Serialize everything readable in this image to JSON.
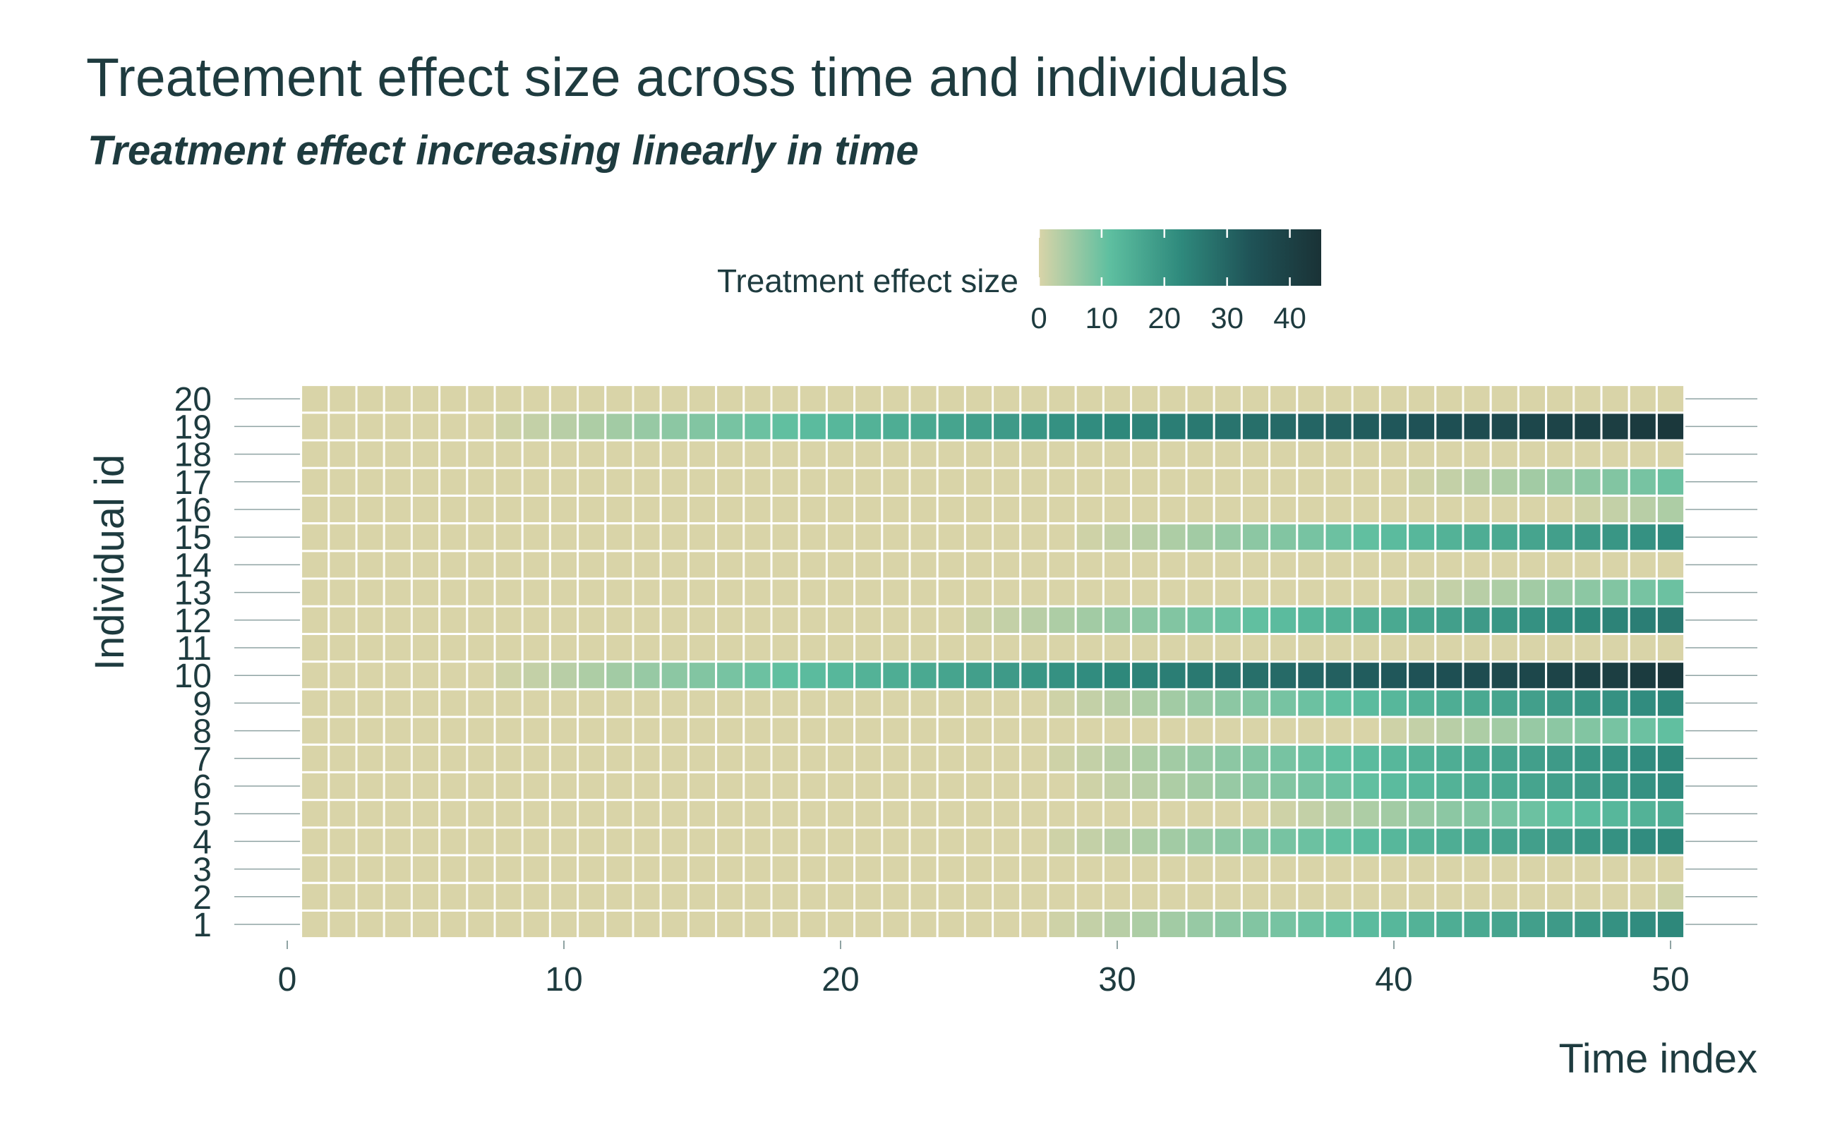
{
  "title": "Treatement effect size across time and individuals",
  "subtitle": "Treatment effect increasing linearly in time",
  "chart_data": {
    "type": "heatmap",
    "title": "Treatement effect size across time and individuals",
    "subtitle": "Treatment effect increasing linearly in time",
    "xlabel": "Time index",
    "ylabel": "Individual id",
    "x_range": [
      1,
      50
    ],
    "y_categories": [
      1,
      2,
      3,
      4,
      5,
      6,
      7,
      8,
      9,
      10,
      11,
      12,
      13,
      14,
      15,
      16,
      17,
      18,
      19,
      20
    ],
    "x_ticks": [
      0,
      10,
      20,
      30,
      40,
      50
    ],
    "grid": "horizontal",
    "legend": {
      "title": "Treatment effect size",
      "position": "top",
      "ticks": [
        0,
        10,
        20,
        30,
        40
      ],
      "range": [
        0,
        45
      ],
      "colors": [
        "#d9d4a8",
        "#5ebfa0",
        "#2f8a7d",
        "#1f5357",
        "#1a3236"
      ]
    },
    "treatment_effects": [
      {
        "individual": 1,
        "start": 28,
        "slope": 1.0
      },
      {
        "individual": 2,
        "start": 50,
        "slope": 1.0
      },
      {
        "individual": 4,
        "start": 28,
        "slope": 1.0
      },
      {
        "individual": 5,
        "start": 36,
        "slope": 1.0
      },
      {
        "individual": 6,
        "start": 29,
        "slope": 1.0
      },
      {
        "individual": 7,
        "start": 28,
        "slope": 1.0
      },
      {
        "individual": 8,
        "start": 40,
        "slope": 1.0
      },
      {
        "individual": 9,
        "start": 28,
        "slope": 1.0
      },
      {
        "individual": 10,
        "start": 8,
        "slope": 1.0
      },
      {
        "individual": 12,
        "start": 25,
        "slope": 1.0
      },
      {
        "individual": 13,
        "start": 41,
        "slope": 1.0
      },
      {
        "individual": 15,
        "start": 29,
        "slope": 1.0
      },
      {
        "individual": 16,
        "start": 47,
        "slope": 1.0
      },
      {
        "individual": 17,
        "start": 41,
        "slope": 1.0
      },
      {
        "individual": 19,
        "start": 8,
        "slope": 1.0
      }
    ]
  }
}
